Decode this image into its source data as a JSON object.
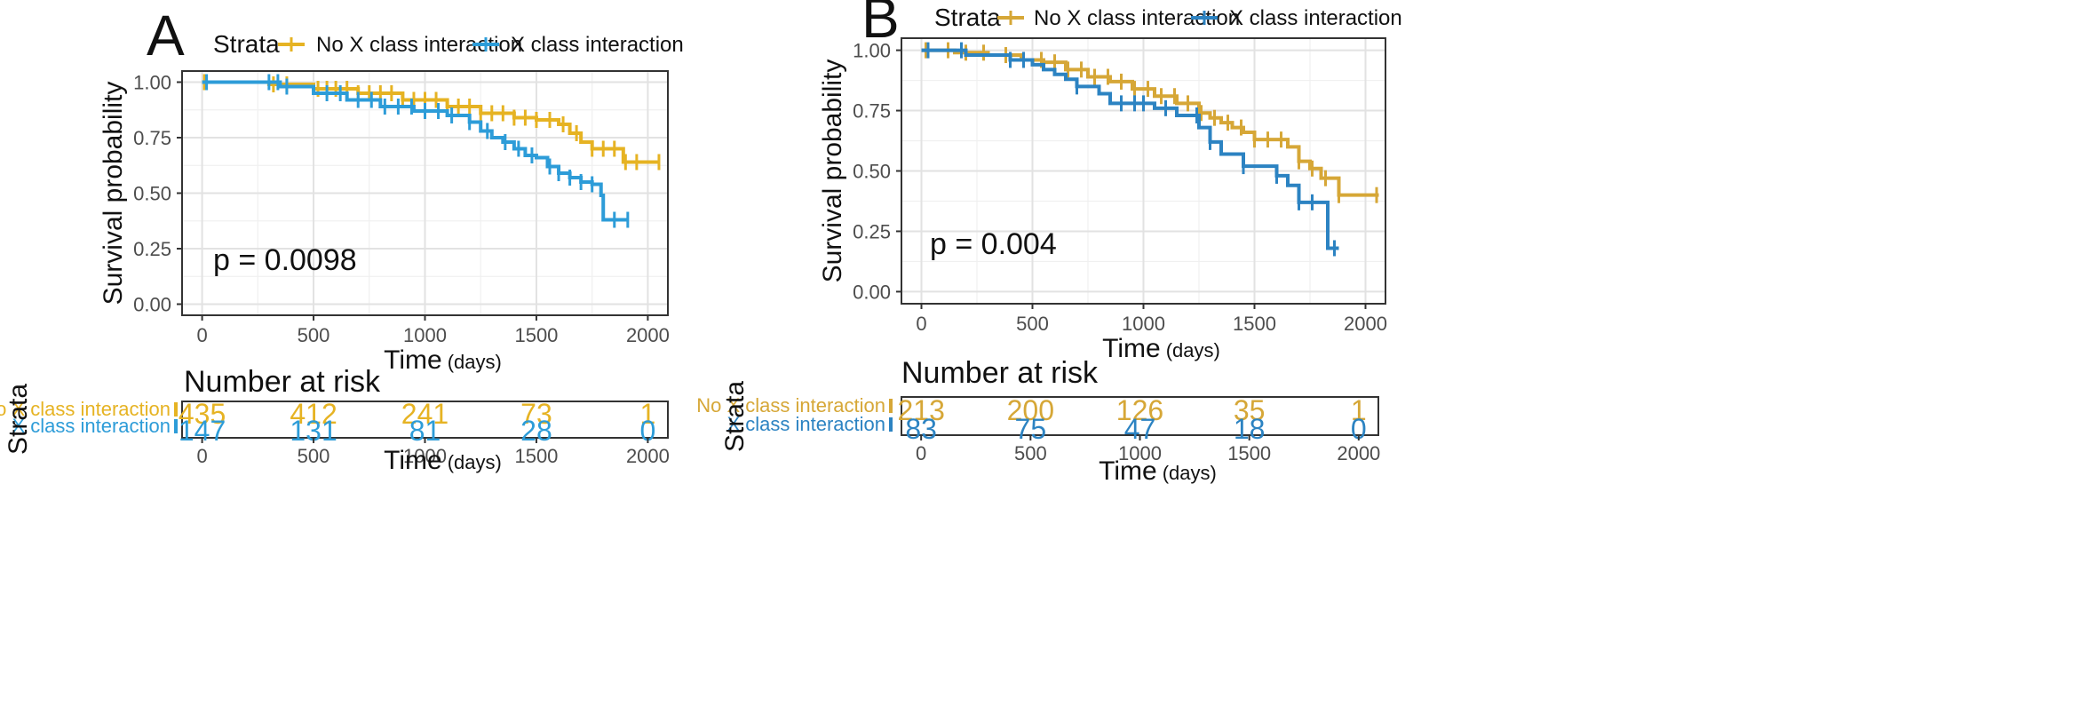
{
  "chart_data": [
    {
      "type": "line",
      "panel": "A",
      "legend": {
        "title": "Strata",
        "placement": "top"
      },
      "xlabel": "Time",
      "xlabel_unit": "(days)",
      "ylabel": "Survival probability",
      "xlim": [
        -90,
        2090
      ],
      "ylim": [
        -0.05,
        1.05
      ],
      "xticks": [
        0,
        500,
        1000,
        1500,
        2000
      ],
      "yticks": [
        0.0,
        0.25,
        0.5,
        0.75,
        1.0
      ],
      "ytick_labels": [
        "0.00",
        "0.25",
        "0.50",
        "0.75",
        "1.00"
      ],
      "grid": true,
      "annotation": "p = 0.0098",
      "series": [
        {
          "name": "No X class interaction",
          "color": "#E6B323",
          "x": [
            0,
            300,
            500,
            700,
            900,
            1100,
            1250,
            1400,
            1500,
            1550,
            1600,
            1650,
            1700,
            1750,
            1800,
            1850,
            1890,
            1950,
            2050
          ],
          "y": [
            1.0,
            0.99,
            0.97,
            0.95,
            0.92,
            0.89,
            0.86,
            0.84,
            0.83,
            0.83,
            0.81,
            0.77,
            0.73,
            0.7,
            0.7,
            0.7,
            0.64,
            0.64,
            0.64
          ],
          "censor_x": [
            10,
            320,
            380,
            520,
            560,
            600,
            650,
            700,
            750,
            800,
            850,
            900,
            950,
            1000,
            1050,
            1100,
            1150,
            1200,
            1250,
            1300,
            1350,
            1400,
            1450,
            1500,
            1560,
            1620,
            1680,
            1750,
            1800,
            1850,
            1900,
            1950,
            2050
          ]
        },
        {
          "name": "X class interaction",
          "color": "#2D9CD8",
          "x": [
            0,
            350,
            500,
            650,
            800,
            950,
            1100,
            1200,
            1250,
            1300,
            1350,
            1400,
            1450,
            1500,
            1550,
            1600,
            1650,
            1700,
            1750,
            1790,
            1800,
            1850,
            1910
          ],
          "y": [
            1.0,
            0.98,
            0.95,
            0.92,
            0.89,
            0.87,
            0.85,
            0.82,
            0.78,
            0.75,
            0.73,
            0.7,
            0.67,
            0.66,
            0.62,
            0.59,
            0.57,
            0.55,
            0.54,
            0.49,
            0.38,
            0.38,
            0.38
          ],
          "censor_x": [
            20,
            300,
            340,
            380,
            560,
            620,
            700,
            760,
            820,
            880,
            940,
            1000,
            1060,
            1120,
            1200,
            1280,
            1360,
            1420,
            1480,
            1560,
            1600,
            1650,
            1700,
            1750,
            1850,
            1910
          ]
        }
      ],
      "risk_table": {
        "title": "Number at risk",
        "ylabel": "Strata",
        "xlabel": "Time",
        "xlabel_unit": "(days)",
        "times": [
          0,
          500,
          1000,
          1500,
          2000
        ],
        "rows": [
          {
            "label": "No X class interaction",
            "color": "#E6B323",
            "values": [
              "435",
              "412",
              "241",
              "73",
              "1"
            ]
          },
          {
            "label": "X class interaction",
            "color": "#2D9CD8",
            "values": [
              "147",
              "131",
              "81",
              "28",
              "0"
            ]
          }
        ]
      }
    },
    {
      "type": "line",
      "panel": "B",
      "legend": {
        "title": "Strata",
        "placement": "top"
      },
      "xlabel": "Time",
      "xlabel_unit": "(days)",
      "ylabel": "Survival probability",
      "xlim": [
        -90,
        2090
      ],
      "ylim": [
        -0.05,
        1.05
      ],
      "xticks": [
        0,
        500,
        1000,
        1500,
        2000
      ],
      "yticks": [
        0.0,
        0.25,
        0.5,
        0.75,
        1.0
      ],
      "ytick_labels": [
        "0.00",
        "0.25",
        "0.50",
        "0.75",
        "1.00"
      ],
      "grid": true,
      "annotation": "p = 0.004",
      "series": [
        {
          "name": "No X class interaction",
          "color": "#D6A737",
          "x": [
            0,
            150,
            300,
            450,
            550,
            650,
            750,
            850,
            950,
            1050,
            1150,
            1250,
            1300,
            1350,
            1400,
            1450,
            1500,
            1550,
            1600,
            1650,
            1700,
            1750,
            1800,
            1850,
            1880,
            1950,
            2060
          ],
          "y": [
            1.0,
            0.99,
            0.98,
            0.96,
            0.95,
            0.92,
            0.89,
            0.87,
            0.84,
            0.81,
            0.78,
            0.74,
            0.72,
            0.7,
            0.68,
            0.66,
            0.63,
            0.63,
            0.63,
            0.6,
            0.54,
            0.51,
            0.47,
            0.47,
            0.4,
            0.4,
            0.4
          ],
          "censor_x": [
            20,
            120,
            200,
            280,
            380,
            460,
            540,
            600,
            660,
            720,
            780,
            840,
            900,
            960,
            1020,
            1080,
            1140,
            1200,
            1260,
            1320,
            1380,
            1440,
            1500,
            1560,
            1620,
            1700,
            1760,
            1820,
            1880,
            2050
          ]
        },
        {
          "name": "X class interaction",
          "color": "#2C83C2",
          "x": [
            0,
            200,
            400,
            500,
            550,
            600,
            650,
            700,
            800,
            850,
            1050,
            1150,
            1250,
            1300,
            1350,
            1450,
            1550,
            1600,
            1650,
            1700,
            1800,
            1830,
            1880
          ],
          "y": [
            1.0,
            0.98,
            0.96,
            0.94,
            0.92,
            0.9,
            0.88,
            0.85,
            0.82,
            0.78,
            0.76,
            0.73,
            0.68,
            0.62,
            0.57,
            0.52,
            0.52,
            0.48,
            0.44,
            0.37,
            0.37,
            0.18,
            0.18
          ],
          "censor_x": [
            30,
            180,
            400,
            460,
            700,
            900,
            960,
            1000,
            1100,
            1240,
            1300,
            1450,
            1600,
            1700,
            1760,
            1860
          ]
        }
      ],
      "risk_table": {
        "title": "Number at risk",
        "ylabel": "Strata",
        "xlabel": "Time",
        "xlabel_unit": "(days)",
        "times": [
          0,
          500,
          1000,
          1500,
          2000
        ],
        "rows": [
          {
            "label": "No X class  interaction",
            "color": "#D6A737",
            "values": [
              "213",
              "200",
              "126",
              "35",
              "1"
            ]
          },
          {
            "label": "X class  interaction",
            "color": "#2C83C2",
            "values": [
              "83",
              "75",
              "47",
              "18",
              "0"
            ]
          }
        ]
      }
    }
  ]
}
